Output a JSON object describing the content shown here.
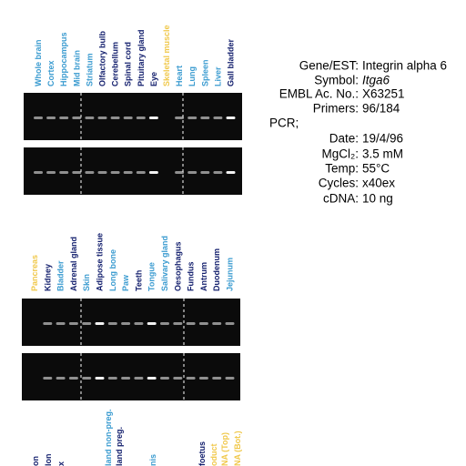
{
  "top_lanes": [
    {
      "label": "Whole brain",
      "color": "#3a9bd0"
    },
    {
      "label": "Cortex",
      "color": "#3a9bd0"
    },
    {
      "label": "Hippocampus",
      "color": "#3a9bd0"
    },
    {
      "label": "Mid brain",
      "color": "#3a9bd0"
    },
    {
      "label": "Striatum",
      "color": "#3a9bd0"
    },
    {
      "label": "Olfactory bulb",
      "color": "#14206e"
    },
    {
      "label": "Cerebellum",
      "color": "#14206e"
    },
    {
      "label": "Spinal cord",
      "color": "#14206e"
    },
    {
      "label": "Pituitary gland",
      "color": "#14206e"
    },
    {
      "label": "Eye",
      "color": "#14206e"
    },
    {
      "label": "Skeletal muscle",
      "color": "#f0c84a"
    },
    {
      "label": "Heart",
      "color": "#3a9bd0"
    },
    {
      "label": "Lung",
      "color": "#3a9bd0"
    },
    {
      "label": "Spleen",
      "color": "#3a9bd0"
    },
    {
      "label": "Liver",
      "color": "#3a9bd0"
    },
    {
      "label": "Gall bladder",
      "color": "#14206e"
    }
  ],
  "middle_lanes": [
    {
      "label": "Pancreas",
      "color": "#f0c84a"
    },
    {
      "label": "Kidney",
      "color": "#14206e"
    },
    {
      "label": "Bladder",
      "color": "#3a9bd0"
    },
    {
      "label": "Adrenal gland",
      "color": "#14206e"
    },
    {
      "label": "Skin",
      "color": "#3a9bd0"
    },
    {
      "label": "Adipose tissue",
      "color": "#14206e"
    },
    {
      "label": "Long bone",
      "color": "#3a9bd0"
    },
    {
      "label": "Paw",
      "color": "#3a9bd0"
    },
    {
      "label": "Teeth",
      "color": "#14206e"
    },
    {
      "label": "Tongue",
      "color": "#3a9bd0"
    },
    {
      "label": "Salivary gland",
      "color": "#3a9bd0"
    },
    {
      "label": "Oesophagus",
      "color": "#14206e"
    },
    {
      "label": "Fundus",
      "color": "#14206e"
    },
    {
      "label": "Antrum",
      "color": "#14206e"
    },
    {
      "label": "Duodenum",
      "color": "#14206e"
    },
    {
      "label": "Jejunum",
      "color": "#3a9bd0"
    }
  ],
  "bottom_lanes": [
    {
      "label": "on",
      "color": "#14206e"
    },
    {
      "label": "lon",
      "color": "#14206e"
    },
    {
      "label": "x",
      "color": "#14206e"
    },
    {
      "label": "land non-preg.",
      "color": "#3a9bd0"
    },
    {
      "label": "land preg.",
      "color": "#14206e"
    },
    {
      "label": "nis",
      "color": "#3a9bd0"
    },
    {
      "label": "foetus",
      "color": "#14206e"
    },
    {
      "label": "oduct",
      "color": "#f0c84a"
    },
    {
      "label": "NA (Top)",
      "color": "#f0c84a"
    },
    {
      "label": "NA (Bot.)",
      "color": "#f0c84a"
    }
  ],
  "info": {
    "rows": [
      {
        "label": "Gene/EST:",
        "value": "Integrin alpha 6"
      },
      {
        "label": "Symbol:",
        "value": "Itga6"
      },
      {
        "label": "EMBL Ac. No.:",
        "value": "X63251"
      },
      {
        "label": "Primers:",
        "value": "96/184"
      },
      {
        "label": "PCR;",
        "value": ""
      },
      {
        "label": "Date:",
        "value": "19/4/96"
      },
      {
        "label": "MgCl₂:",
        "value": "3.5 mM"
      },
      {
        "label": "Temp:",
        "value": "55°C"
      },
      {
        "label": "Cycles:",
        "value": "x40ex"
      },
      {
        "label": "cDNA:",
        "value": "10 ng"
      }
    ]
  }
}
